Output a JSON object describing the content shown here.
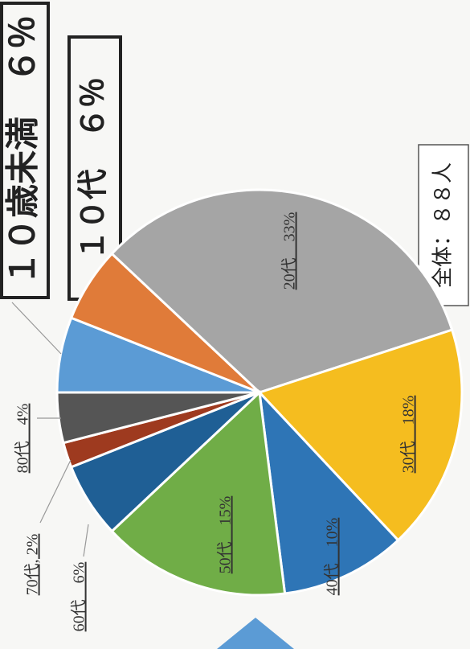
{
  "chart_data": {
    "type": "pie",
    "values": [
      6,
      6,
      33,
      18,
      10,
      15,
      6,
      2,
      4
    ],
    "value_labels": [
      "１０歳未満　６％",
      "１０代　６％",
      "20代　33%",
      "30代　18%",
      "40代　10%",
      "50代　15%",
      "60代　6%",
      "70代, 2%",
      "80代　4%"
    ],
    "colors": [
      "#5b9bd5",
      "#e07b39",
      "#a5a5a5",
      "#f5bd1f",
      "#2e75b6",
      "#70ad47",
      "#1f5f95",
      "#9e3a1f",
      "#555555"
    ],
    "annotation": "全体：８８人"
  }
}
